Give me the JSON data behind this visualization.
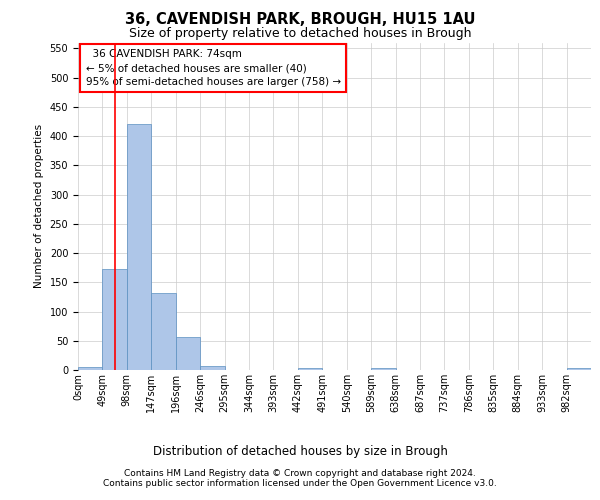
{
  "title1": "36, CAVENDISH PARK, BROUGH, HU15 1AU",
  "title2": "Size of property relative to detached houses in Brough",
  "xlabel": "Distribution of detached houses by size in Brough",
  "ylabel": "Number of detached properties",
  "footnote1": "Contains HM Land Registry data © Crown copyright and database right 2024.",
  "footnote2": "Contains public sector information licensed under the Open Government Licence v3.0.",
  "bin_labels": [
    "0sqm",
    "49sqm",
    "98sqm",
    "147sqm",
    "196sqm",
    "246sqm",
    "295sqm",
    "344sqm",
    "393sqm",
    "442sqm",
    "491sqm",
    "540sqm",
    "589sqm",
    "638sqm",
    "687sqm",
    "737sqm",
    "786sqm",
    "835sqm",
    "884sqm",
    "933sqm",
    "982sqm"
  ],
  "bar_values": [
    5,
    173,
    420,
    131,
    57,
    7,
    0,
    0,
    0,
    3,
    0,
    0,
    4,
    0,
    0,
    0,
    0,
    0,
    0,
    0,
    3
  ],
  "bar_color": "#aec6e8",
  "bar_edge_color": "#5a8fc0",
  "ylim": [
    0,
    560
  ],
  "yticks": [
    0,
    50,
    100,
    150,
    200,
    250,
    300,
    350,
    400,
    450,
    500,
    550
  ],
  "property_label": "36 CAVENDISH PARK: 74sqm",
  "pct_smaller": "5% of detached houses are smaller (40)",
  "pct_larger": "95% of semi-detached houses are larger (758)",
  "red_line_x": 1.51,
  "background_color": "#ffffff",
  "grid_color": "#cccccc",
  "title1_fontsize": 10.5,
  "title2_fontsize": 9,
  "ylabel_fontsize": 7.5,
  "xlabel_fontsize": 8.5,
  "tick_fontsize": 7,
  "annot_fontsize": 7.5,
  "footnote_fontsize": 6.5
}
